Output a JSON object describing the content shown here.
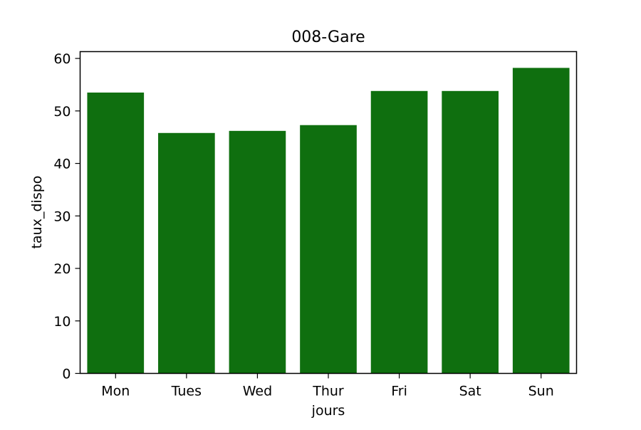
{
  "chart_data": {
    "type": "bar",
    "title": "008-Gare",
    "xlabel": "jours",
    "ylabel": "taux_dispo",
    "categories": [
      "Mon",
      "Tues",
      "Wed",
      "Thur",
      "Fri",
      "Sat",
      "Sun"
    ],
    "values": [
      53.5,
      45.8,
      46.2,
      47.3,
      53.8,
      53.8,
      58.2
    ],
    "ylim": [
      0,
      61.3
    ],
    "yticks": [
      0,
      10,
      20,
      30,
      40,
      50,
      60
    ],
    "bar_color": "#0f6f0f",
    "grid": false,
    "legend": "none"
  }
}
